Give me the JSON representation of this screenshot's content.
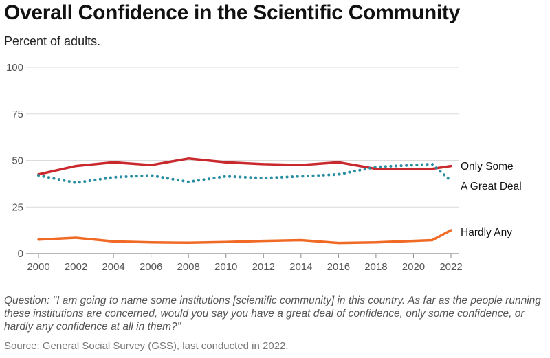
{
  "header": {
    "title": "Overall Confidence in the Scientific Community",
    "subtitle": "Percent of adults."
  },
  "footer": {
    "question": "Question: \"I am going to name some institutions [scientific community] in this country. As far as the people running these institutions are concerned, would you say you have a great deal of confidence, only some confidence, or hardly any confidence at all in them?\"",
    "source": "Source: General Social Survey (GSS), last conducted in 2022."
  },
  "chart_data": {
    "type": "line",
    "title": "Overall Confidence in the Scientific Community",
    "subtitle": "Percent of adults.",
    "xlabel": "",
    "ylabel": "",
    "xlim": [
      2000,
      2022
    ],
    "ylim": [
      0,
      100
    ],
    "x_ticks": [
      "2000",
      "2002",
      "2004",
      "2006",
      "2008",
      "2010",
      "2012",
      "2014",
      "2016",
      "2018",
      "2020",
      "2022"
    ],
    "y_ticks": [
      "0",
      "25",
      "50",
      "75",
      "100"
    ],
    "grid": "horizontal",
    "legend": "direct labels at line ends",
    "series": [
      {
        "name": "Only Some",
        "color": "#c9282d",
        "style": "solid",
        "x": [
          2000,
          2002,
          2004,
          2006,
          2008,
          2010,
          2012,
          2014,
          2016,
          2018,
          2021,
          2022
        ],
        "values": [
          42.5,
          47,
          49,
          47.5,
          51,
          49,
          48,
          47.5,
          49,
          45.5,
          45.5,
          47
        ]
      },
      {
        "name": "A Great Deal",
        "color": "#2a8ea3",
        "style": "dotted",
        "x": [
          2000,
          2002,
          2004,
          2006,
          2008,
          2010,
          2012,
          2014,
          2016,
          2018,
          2021,
          2022
        ],
        "values": [
          42,
          38,
          41,
          42,
          38.5,
          41.5,
          40.5,
          41.5,
          42.5,
          46.5,
          48,
          39
        ]
      },
      {
        "name": "Hardly Any",
        "color": "#f06a25",
        "style": "solid",
        "x": [
          2000,
          2002,
          2004,
          2006,
          2008,
          2010,
          2012,
          2014,
          2016,
          2018,
          2021,
          2022
        ],
        "values": [
          7.5,
          8.5,
          6.5,
          6,
          5.8,
          6.2,
          6.8,
          7.2,
          5.7,
          6,
          7.2,
          12.5
        ]
      }
    ]
  }
}
